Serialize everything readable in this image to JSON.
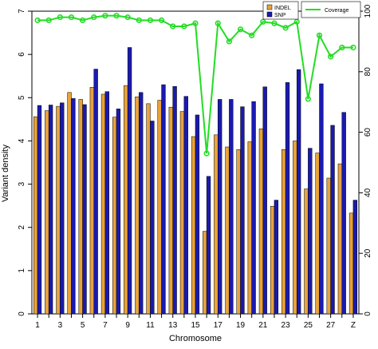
{
  "chart_data": {
    "type": "bar",
    "xlabel": "Chromosome",
    "ylabel": "Variant density",
    "ylim": [
      0,
      7
    ],
    "y2lim": [
      0,
      100
    ],
    "yticks": [
      0,
      1,
      2,
      3,
      4,
      5,
      6,
      7
    ],
    "y2ticks": [
      0,
      20,
      40,
      60,
      80,
      100
    ],
    "categories": [
      "1",
      "2",
      "3",
      "4",
      "5",
      "6",
      "7",
      "8",
      "9",
      "10",
      "11",
      "12",
      "13",
      "14",
      "15",
      "16",
      "17",
      "18",
      "19",
      "20",
      "21",
      "22",
      "23",
      "24",
      "25",
      "26",
      "27",
      "28",
      "Z"
    ],
    "xtick_labels": [
      "1",
      "",
      "3",
      "",
      "5",
      "",
      "7",
      "",
      "9",
      "",
      "11",
      "",
      "13",
      "",
      "15",
      "",
      "17",
      "",
      "19",
      "",
      "21",
      "",
      "23",
      "",
      "25",
      "",
      "27",
      "",
      "Z"
    ],
    "series": [
      {
        "name": "INDEL",
        "color": "#e8a33c",
        "axis": "left",
        "values": [
          4.56,
          4.7,
          4.8,
          5.12,
          4.96,
          5.24,
          5.08,
          4.55,
          5.28,
          5.02,
          4.86,
          4.94,
          4.78,
          4.68,
          4.1,
          1.91,
          4.14,
          3.86,
          3.8,
          3.98,
          4.28,
          2.49,
          3.8,
          4.0,
          2.89,
          3.72,
          3.14,
          3.47,
          2.33
        ]
      },
      {
        "name": "SNP",
        "color": "#1a1ab0",
        "axis": "left",
        "values": [
          4.82,
          4.83,
          4.88,
          4.98,
          4.84,
          5.66,
          5.14,
          4.74,
          6.16,
          5.12,
          4.46,
          5.3,
          5.26,
          5.03,
          4.6,
          3.18,
          4.96,
          4.96,
          4.79,
          4.91,
          5.25,
          2.63,
          5.35,
          5.65,
          3.83,
          5.32,
          4.36,
          4.66,
          2.63
        ]
      },
      {
        "name": "Coverage",
        "color": "#22dd22",
        "axis": "right",
        "type": "line",
        "values": [
          97,
          97,
          98,
          98,
          97,
          98,
          98.5,
          98.5,
          98,
          97,
          97,
          97,
          95,
          95,
          96,
          53,
          96,
          90,
          94,
          92,
          96.5,
          96,
          94.5,
          96.5,
          71,
          92,
          85,
          88,
          88
        ]
      }
    ],
    "legend": [
      "INDEL",
      "SNP",
      "Coverage"
    ],
    "legend_position": "top-right"
  }
}
